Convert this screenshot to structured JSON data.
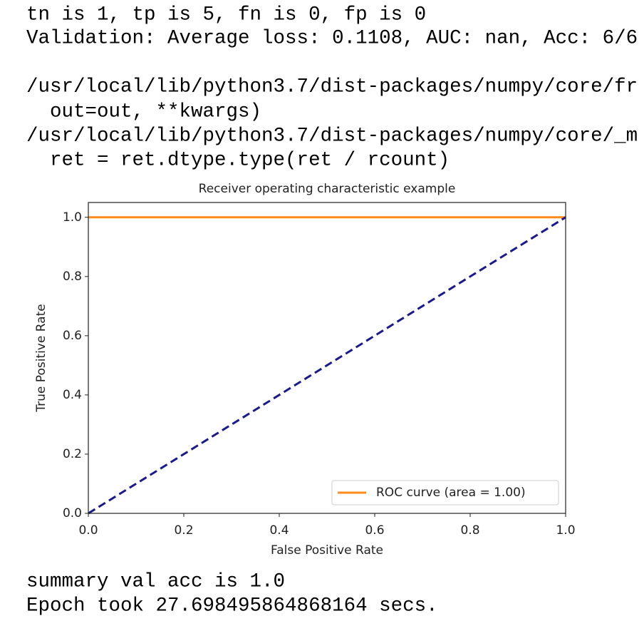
{
  "output_top": [
    "tn is 1, tp is 5, fn is 0, fp is 0",
    "Validation: Average loss: 0.1108, AUC: nan, Acc: 6/6",
    "/usr/local/lib/python3.7/dist-packages/numpy/core/fr",
    "  out=out, **kwargs)",
    "/usr/local/lib/python3.7/dist-packages/numpy/core/_m",
    "  ret = ret.dtype.type(ret / rcount)"
  ],
  "chart_data": {
    "type": "line",
    "title": "Receiver operating characteristic example",
    "x_label": "False Positive Rate",
    "y_label": "True Positive Rate",
    "series": [
      {
        "name": "ROC curve (area = 1.00)",
        "color": "#ff8c1a",
        "x": [
          0,
          1
        ],
        "values": [
          1,
          1
        ]
      },
      {
        "color": "#1a1a8c",
        "dashed": true,
        "x": [
          0,
          1
        ],
        "values": [
          0,
          1
        ]
      }
    ],
    "xlim": [
      0,
      1
    ],
    "ylim": [
      0,
      1.05
    ],
    "xticks": [
      {
        "value": 0,
        "label": "0.0"
      },
      {
        "value": 0.2,
        "label": "0.2"
      },
      {
        "value": 0.4,
        "label": "0.4"
      },
      {
        "value": 0.6,
        "label": "0.6"
      },
      {
        "value": 0.8,
        "label": "0.8"
      },
      {
        "value": 1,
        "label": "1.0"
      }
    ],
    "yticks": [
      {
        "value": 0,
        "label": "0.0"
      },
      {
        "value": 0.2,
        "label": "0.2"
      },
      {
        "value": 0.4,
        "label": "0.4"
      },
      {
        "value": 0.6,
        "label": "0.6"
      },
      {
        "value": 0.8,
        "label": "0.8"
      },
      {
        "value": 1,
        "label": "1.0"
      }
    ],
    "legend": "lower right"
  },
  "output_bottom": [
    "summary val acc is 1.0",
    "Epoch took 27.698495864868164 secs."
  ]
}
